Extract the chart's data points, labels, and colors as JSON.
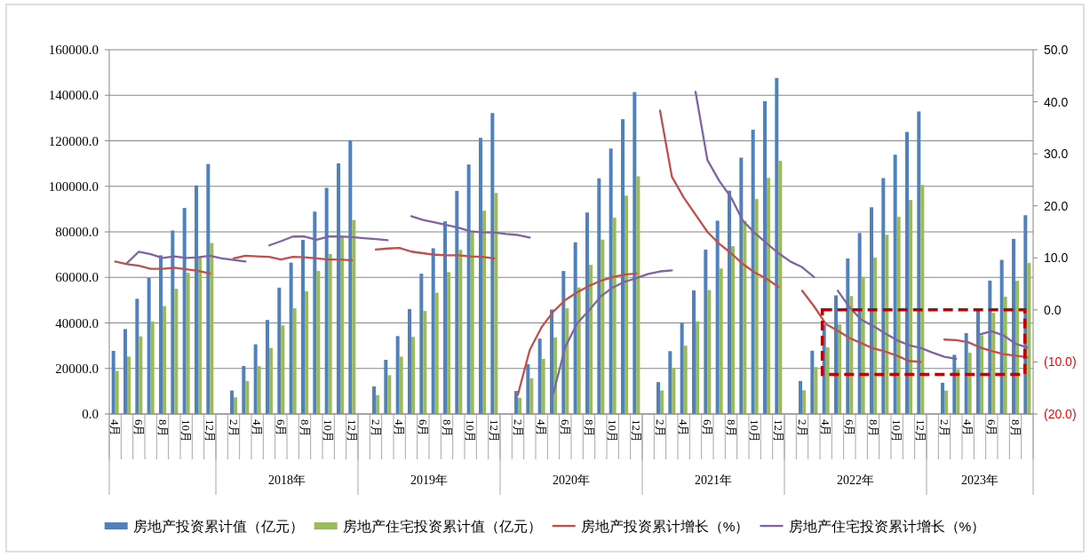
{
  "chart_data": {
    "type": "bar",
    "categories": [
      "4月",
      null,
      "6月",
      null,
      "8月",
      null,
      "10月",
      null,
      "12月",
      null,
      "2月",
      null,
      "4月",
      null,
      "6月",
      null,
      "8月",
      null,
      "10月",
      null,
      "12月",
      null,
      "2月",
      null,
      "4月",
      null,
      "6月",
      null,
      "8月",
      null,
      "10月",
      null,
      "12月",
      null,
      "2月",
      null,
      "4月",
      null,
      "6月",
      null,
      "8月",
      null,
      "10月",
      null,
      "12月",
      null,
      "2月",
      null,
      "4月",
      null,
      "6月",
      null,
      "8月",
      null,
      "10月",
      null,
      "12月",
      null,
      "2月",
      null,
      "4月",
      null,
      "6月",
      null,
      "8月",
      null,
      "10月",
      null,
      "12月",
      null,
      "2月",
      null,
      "4月",
      null,
      "6月",
      null,
      "8月",
      null
    ],
    "series": [
      {
        "name": "房地产投资累计值（亿元）",
        "color": "#4f81bd",
        "values": [
          27700,
          37300,
          50600,
          59800,
          69700,
          80600,
          90500,
          100400,
          109800,
          null,
          10300,
          21100,
          30600,
          41300,
          55500,
          66500,
          76500,
          88900,
          99300,
          110100,
          120300,
          null,
          12100,
          23800,
          34200,
          46100,
          61600,
          72800,
          84600,
          98000,
          109600,
          121300,
          132200,
          null,
          10100,
          21900,
          33100,
          45900,
          62800,
          75400,
          88500,
          103500,
          116600,
          129500,
          141400,
          null,
          14000,
          27600,
          40200,
          54300,
          72200,
          84900,
          98100,
          112600,
          124900,
          137400,
          147600,
          null,
          14500,
          27800,
          39200,
          52100,
          68300,
          79500,
          90800,
          103600,
          113900,
          123900,
          132900,
          null,
          13700,
          26000,
          35500,
          45700,
          58600,
          67700,
          76900,
          87300
        ]
      },
      {
        "name": "房地产住宅投资累计值（亿元）",
        "color": "#9bbb59",
        "values": [
          18900,
          25200,
          34100,
          40600,
          47400,
          55000,
          62000,
          68700,
          75100,
          null,
          7300,
          14500,
          21000,
          29000,
          38900,
          46400,
          53900,
          62800,
          70300,
          77800,
          85200,
          null,
          8300,
          17000,
          25200,
          33900,
          45200,
          53300,
          62300,
          72100,
          80300,
          89300,
          97100,
          null,
          7100,
          15700,
          24200,
          33600,
          46400,
          55600,
          65500,
          76600,
          86200,
          95900,
          104400,
          null,
          10300,
          20300,
          30000,
          40700,
          54400,
          63900,
          73700,
          84900,
          94400,
          103700,
          111200,
          null,
          10400,
          20600,
          29300,
          39400,
          51800,
          60200,
          68700,
          78700,
          86600,
          94000,
          100600,
          null,
          10300,
          19600,
          26900,
          34600,
          44400,
          51500,
          58500,
          66300
        ]
      },
      {
        "name": "房地产投资累计增长（%）",
        "type": "line",
        "axis": "y2",
        "color": "#c0504d",
        "values": [
          9.3,
          8.8,
          8.5,
          7.9,
          7.9,
          8.1,
          7.8,
          7.5,
          7.0,
          null,
          9.9,
          10.4,
          10.3,
          10.2,
          9.7,
          10.2,
          10.1,
          9.9,
          9.7,
          9.7,
          9.5,
          null,
          11.6,
          11.8,
          11.9,
          11.2,
          10.9,
          10.6,
          10.5,
          10.5,
          10.3,
          10.2,
          9.9,
          null,
          -16.3,
          -7.7,
          -3.3,
          -0.3,
          1.9,
          3.4,
          4.6,
          5.6,
          6.3,
          6.8,
          7.0,
          null,
          38.3,
          25.6,
          21.6,
          18.3,
          15.0,
          12.7,
          10.9,
          8.8,
          7.2,
          6.0,
          4.4,
          null,
          3.7,
          0.7,
          -2.7,
          -4.0,
          -5.4,
          -6.4,
          -7.4,
          -8.0,
          -8.8,
          -9.8,
          -10.0,
          null,
          -5.7,
          -5.8,
          -6.2,
          -7.2,
          -7.9,
          -8.5,
          -8.8,
          -9.1
        ]
      },
      {
        "name": "房地产住宅投资累计增长（%）",
        "type": "line",
        "axis": "y2",
        "color": "#8064a2",
        "values": [
          null,
          9.0,
          11.2,
          10.7,
          10.0,
          10.3,
          10.0,
          10.1,
          10.4,
          9.9,
          9.6,
          9.3,
          null,
          12.4,
          13.2,
          14.1,
          14.1,
          13.5,
          14.1,
          14.1,
          14.0,
          13.8,
          13.6,
          13.4,
          null,
          18.0,
          17.3,
          16.8,
          16.3,
          15.8,
          15.1,
          14.9,
          14.9,
          14.6,
          14.4,
          13.9,
          null,
          -16.0,
          -7.1,
          -2.6,
          -0.1,
          2.6,
          4.3,
          5.4,
          6.1,
          6.9,
          7.4,
          7.6,
          null,
          41.9,
          28.8,
          24.8,
          21.6,
          17.1,
          14.8,
          12.8,
          10.9,
          9.3,
          8.2,
          6.3,
          null,
          3.7,
          0.5,
          -1.9,
          -3.1,
          -4.5,
          -5.8,
          -6.8,
          -7.3,
          -8.2,
          -9.0,
          -9.4,
          null,
          -4.7,
          -4.1,
          -4.9,
          -6.5,
          -7.2
        ]
      }
    ],
    "ylim": [
      0,
      160000
    ],
    "yticks": [
      {
        "value": 0,
        "label": "0.0"
      },
      {
        "value": 20000,
        "label": "20000.0"
      },
      {
        "value": 40000,
        "label": "40000.0"
      },
      {
        "value": 60000,
        "label": "60000.0"
      },
      {
        "value": 80000,
        "label": "80000.0"
      },
      {
        "value": 100000,
        "label": "100000.0"
      },
      {
        "value": 120000,
        "label": "120000.0"
      },
      {
        "value": 140000,
        "label": "140000.0"
      },
      {
        "value": 160000,
        "label": "160000.0"
      }
    ],
    "y2lim": [
      -20,
      50
    ],
    "y2ticks": [
      {
        "value": -20,
        "label": "(20.0)"
      },
      {
        "value": -10,
        "label": "(10.0)"
      },
      {
        "value": 0,
        "label": "0.0"
      },
      {
        "value": 10,
        "label": "10.0"
      },
      {
        "value": 20,
        "label": "20.0"
      },
      {
        "value": 30,
        "label": "30.0"
      },
      {
        "value": 40,
        "label": "40.0"
      },
      {
        "value": 50,
        "label": "50.0"
      }
    ],
    "grid": "y",
    "legend": "bottom",
    "annotations": [
      "2018年",
      "2019年",
      "2020年",
      "2021年",
      "2022年",
      "2023年"
    ]
  }
}
